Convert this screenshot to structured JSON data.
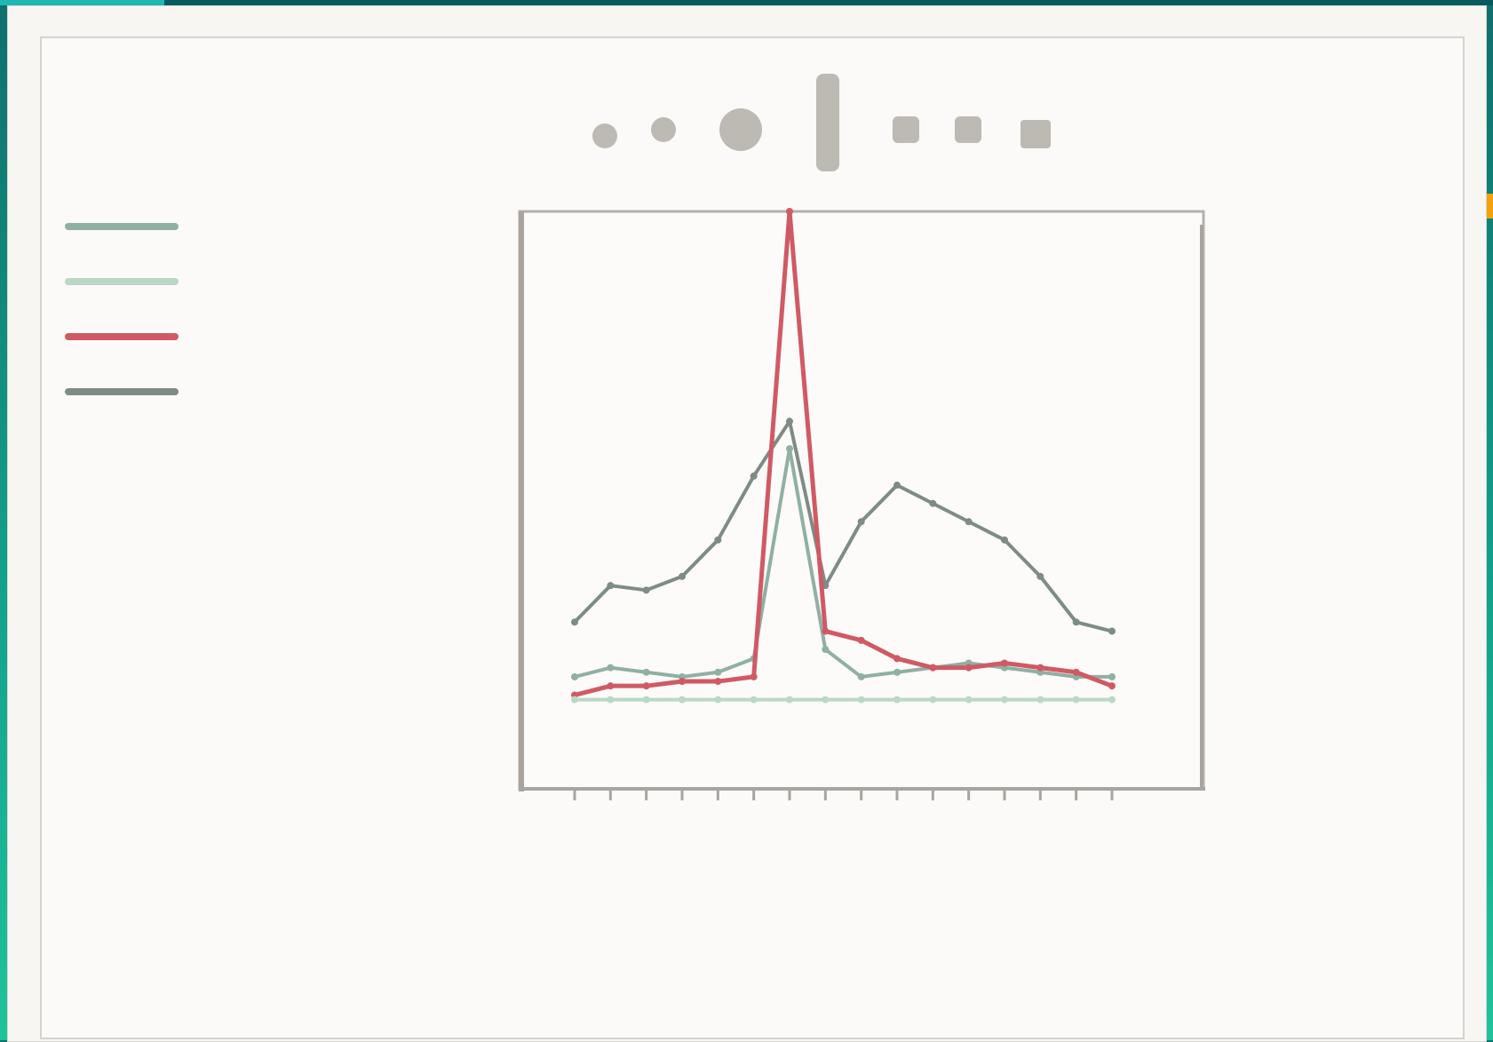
{
  "chart_data": {
    "type": "line",
    "title": "",
    "xlabel": "",
    "ylabel_left": "",
    "ylabel_right": "",
    "x": [
      0,
      1,
      2,
      3,
      4,
      5,
      6,
      7,
      8,
      9,
      10,
      11,
      12,
      13,
      14,
      15
    ],
    "xlim": [
      0,
      15
    ],
    "ylim": [
      0,
      110
    ],
    "grid": false,
    "legend_position": "top-left",
    "series": [
      {
        "name": "",
        "color": "#7e8c84",
        "values": [
          20,
          28,
          27,
          30,
          38,
          52,
          64,
          28,
          42,
          50,
          46,
          42,
          38,
          30,
          20,
          18
        ]
      },
      {
        "name": "",
        "color": "#8fb0a2",
        "values": [
          8,
          10,
          9,
          8,
          9,
          12,
          58,
          14,
          8,
          9,
          10,
          11,
          10,
          9,
          8,
          8
        ]
      },
      {
        "name": "",
        "color": "#d05a64",
        "values": [
          4,
          6,
          6,
          7,
          7,
          8,
          110,
          18,
          16,
          12,
          10,
          10,
          11,
          10,
          9,
          6
        ]
      },
      {
        "name": "",
        "color": "#b9d8c6",
        "values": [
          3,
          3,
          3,
          3,
          3,
          3,
          3,
          3,
          3,
          3,
          3,
          3,
          3,
          3,
          3,
          3
        ]
      }
    ]
  },
  "legend": {
    "items": [
      {
        "label": "",
        "color": "#8fb0a2"
      },
      {
        "label": "",
        "color": "#b9d8c6"
      },
      {
        "label": "",
        "color": "#d05a64"
      },
      {
        "label": "",
        "color": "#7e8c84"
      }
    ]
  },
  "toolbar": {
    "icons": [
      "home-icon",
      "back-icon",
      "forward-icon",
      "pan-icon",
      "zoom-icon",
      "configure-icon",
      "save-icon"
    ]
  }
}
